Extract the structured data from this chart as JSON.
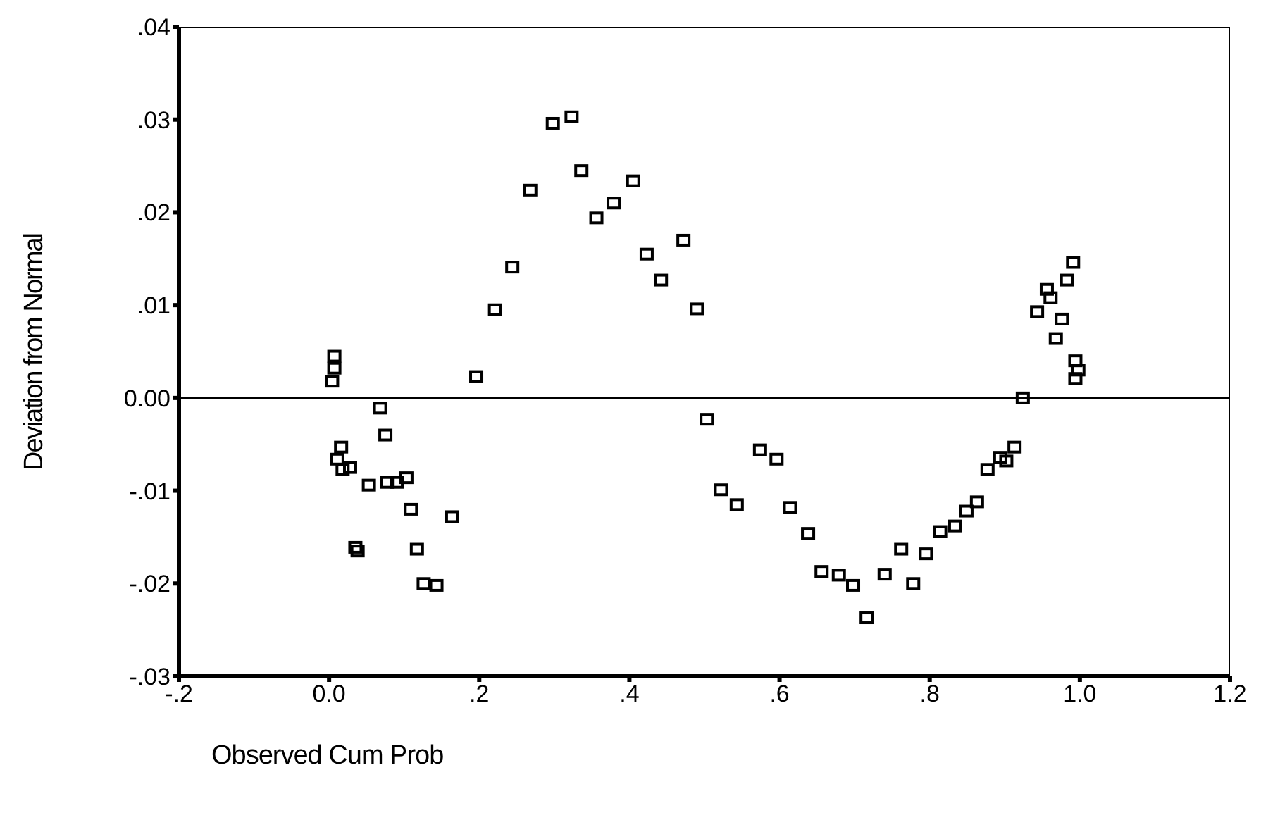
{
  "chart_data": {
    "type": "scatter",
    "xlabel": "Observed Cum Prob",
    "ylabel": "Deviation from Normal",
    "marker": "square",
    "grid": false,
    "xlim": [
      -0.2,
      1.2
    ],
    "xticks": [
      {
        "value": -0.2,
        "label": "-.2"
      },
      {
        "value": 0,
        "label": "0.0"
      },
      {
        "value": 0.2,
        "label": ".2"
      },
      {
        "value": 0.4,
        "label": ".4"
      },
      {
        "value": 0.6,
        "label": ".6"
      },
      {
        "value": 0.8,
        "label": ".8"
      },
      {
        "value": 1.0,
        "label": "1.0"
      },
      {
        "value": 1.2,
        "label": "1.2"
      }
    ],
    "ylim": [
      -0.03,
      0.04
    ],
    "yticks": [
      {
        "value": -0.03,
        "label": "-.03"
      },
      {
        "value": -0.02,
        "label": "-.02"
      },
      {
        "value": -0.01,
        "label": "-.01"
      },
      {
        "value": 0,
        "label": "0.00"
      },
      {
        "value": 0.01,
        "label": ".01"
      },
      {
        "value": 0.02,
        "label": ".02"
      },
      {
        "value": 0.03,
        "label": ".03"
      },
      {
        "value": 0.04,
        "label": ".04"
      }
    ],
    "ref_lines": [
      {
        "axis": "y",
        "value": 0,
        "color": "#000000"
      }
    ],
    "series": [
      {
        "color": "#000000",
        "x": [
          0.007,
          0.007,
          0.004,
          0.068,
          0.075,
          0.016,
          0.011,
          0.018,
          0.028,
          0.035,
          0.038,
          0.053,
          0.077,
          0.09,
          0.103,
          0.109,
          0.117,
          0.126,
          0.143,
          0.164,
          0.196,
          0.221,
          0.244,
          0.268,
          0.298,
          0.323,
          0.336,
          0.356,
          0.379,
          0.405,
          0.423,
          0.442,
          0.472,
          0.49,
          0.503,
          0.522,
          0.543,
          0.574,
          0.596,
          0.614,
          0.638,
          0.656,
          0.679,
          0.698,
          0.716,
          0.74,
          0.762,
          0.778,
          0.795,
          0.814,
          0.834,
          0.849,
          0.863,
          0.877,
          0.894,
          0.902,
          0.913,
          0.924,
          0.943,
          0.956,
          0.961,
          0.968,
          0.976,
          0.983,
          0.991,
          0.994,
          0.998,
          0.994
        ],
        "values": [
          0.0045,
          0.0032,
          0.0018,
          -0.0011,
          -0.004,
          -0.0053,
          -0.0066,
          -0.0077,
          -0.0075,
          -0.0161,
          -0.0165,
          -0.0094,
          -0.0091,
          -0.0091,
          -0.0086,
          -0.012,
          -0.0163,
          -0.02,
          -0.0202,
          -0.0128,
          0.0023,
          0.0095,
          0.0141,
          0.0224,
          0.0296,
          0.0303,
          0.0245,
          0.0194,
          0.021,
          0.0234,
          0.0155,
          0.0127,
          0.017,
          0.0096,
          -0.0023,
          -0.0099,
          -0.0115,
          -0.0056,
          -0.0066,
          -0.0118,
          -0.0146,
          -0.0187,
          -0.0191,
          -0.0202,
          -0.0237,
          -0.019,
          -0.0163,
          -0.02,
          -0.0168,
          -0.0144,
          -0.0138,
          -0.0122,
          -0.0112,
          -0.0077,
          -0.0064,
          -0.0068,
          -0.0053,
          0.0,
          0.0093,
          0.0117,
          0.0108,
          0.0064,
          0.0085,
          0.0127,
          0.0146,
          0.004,
          0.003,
          0.0021
        ]
      }
    ]
  }
}
